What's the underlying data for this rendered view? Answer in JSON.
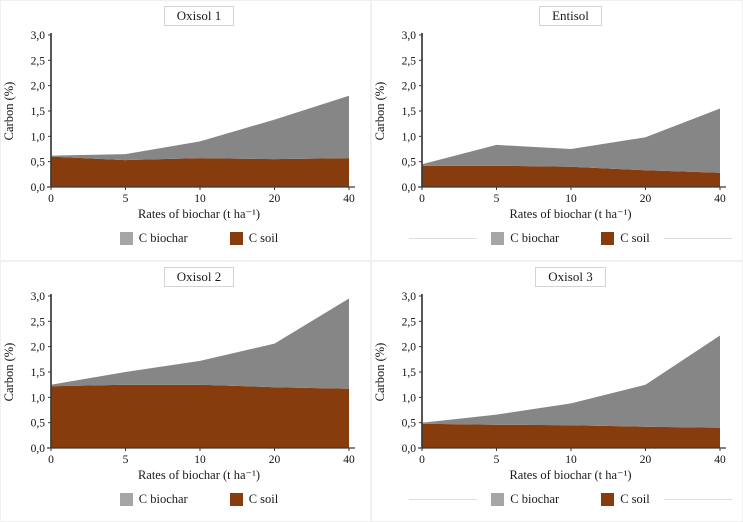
{
  "figure": {
    "background": "#ffffff"
  },
  "colors": {
    "biochar_area": "#868686",
    "soil_area": "#873C0E",
    "legend_biochar_swatch": "#a6a6a6",
    "legend_soil_swatch": "#873C0E",
    "axis_line": "#3a3a3a",
    "title_border": "#d4d4d4"
  },
  "legend": {
    "items": [
      {
        "name": "C biochar",
        "label": "C biochar",
        "color": "#a6a6a6"
      },
      {
        "name": "C soil",
        "label": "C soil",
        "color": "#873C0E"
      }
    ]
  },
  "axes": {
    "ylabel": "Carbon (%)",
    "xlabel": "Rates of biochar (t ha⁻¹)",
    "yticks": [
      "0,0",
      "0,5",
      "1,0",
      "1,5",
      "2,0",
      "2,5",
      "3,0"
    ],
    "xticks": [
      "0",
      "5",
      "10",
      "20",
      "40"
    ],
    "ylim": [
      0,
      3
    ]
  },
  "chart_data": [
    {
      "type": "area",
      "stacked": true,
      "title": "Oxisol 1",
      "xlabel": "Rates of biochar (t ha⁻¹)",
      "ylabel": "Carbon (%)",
      "ylim": [
        0,
        3
      ],
      "x": [
        0,
        5,
        10,
        20,
        40
      ],
      "series": [
        {
          "name": "C soil",
          "color": "#873C0E",
          "values": [
            0.6,
            0.53,
            0.57,
            0.55,
            0.57
          ]
        },
        {
          "name": "C biochar",
          "color": "#868686",
          "values": [
            0.02,
            0.12,
            0.33,
            0.78,
            1.23
          ]
        }
      ],
      "stacked_totals": [
        0.62,
        0.65,
        0.9,
        1.33,
        1.8
      ]
    },
    {
      "type": "area",
      "stacked": true,
      "title": "Entisol",
      "xlabel": "Rates of biochar (t ha⁻¹)",
      "ylabel": "Carbon (%)",
      "ylim": [
        0,
        3
      ],
      "x": [
        0,
        5,
        10,
        20,
        40
      ],
      "series": [
        {
          "name": "C soil",
          "color": "#873C0E",
          "values": [
            0.42,
            0.42,
            0.4,
            0.33,
            0.28
          ]
        },
        {
          "name": "C biochar",
          "color": "#868686",
          "values": [
            0.03,
            0.41,
            0.35,
            0.65,
            1.27
          ]
        }
      ],
      "stacked_totals": [
        0.45,
        0.83,
        0.75,
        0.98,
        1.55
      ]
    },
    {
      "type": "area",
      "stacked": true,
      "title": "Oxisol 2",
      "xlabel": "Rates of biochar (t ha⁻¹)",
      "ylabel": "Carbon (%)",
      "ylim": [
        0,
        3
      ],
      "x": [
        0,
        5,
        10,
        20,
        40
      ],
      "series": [
        {
          "name": "C soil",
          "color": "#873C0E",
          "values": [
            1.22,
            1.25,
            1.25,
            1.2,
            1.17
          ]
        },
        {
          "name": "C biochar",
          "color": "#868686",
          "values": [
            0.03,
            0.25,
            0.47,
            0.86,
            1.78
          ]
        }
      ],
      "stacked_totals": [
        1.25,
        1.5,
        1.72,
        2.06,
        2.95
      ]
    },
    {
      "type": "area",
      "stacked": true,
      "title": "Oxisol 3",
      "xlabel": "Rates of biochar (t ha⁻¹)",
      "ylabel": "Carbon (%)",
      "ylim": [
        0,
        3
      ],
      "x": [
        0,
        5,
        10,
        20,
        40
      ],
      "series": [
        {
          "name": "C soil",
          "color": "#873C0E",
          "values": [
            0.48,
            0.46,
            0.45,
            0.42,
            0.4
          ]
        },
        {
          "name": "C biochar",
          "color": "#868686",
          "values": [
            0.02,
            0.2,
            0.43,
            0.83,
            1.82
          ]
        }
      ],
      "stacked_totals": [
        0.5,
        0.66,
        0.88,
        1.25,
        2.22
      ]
    }
  ]
}
